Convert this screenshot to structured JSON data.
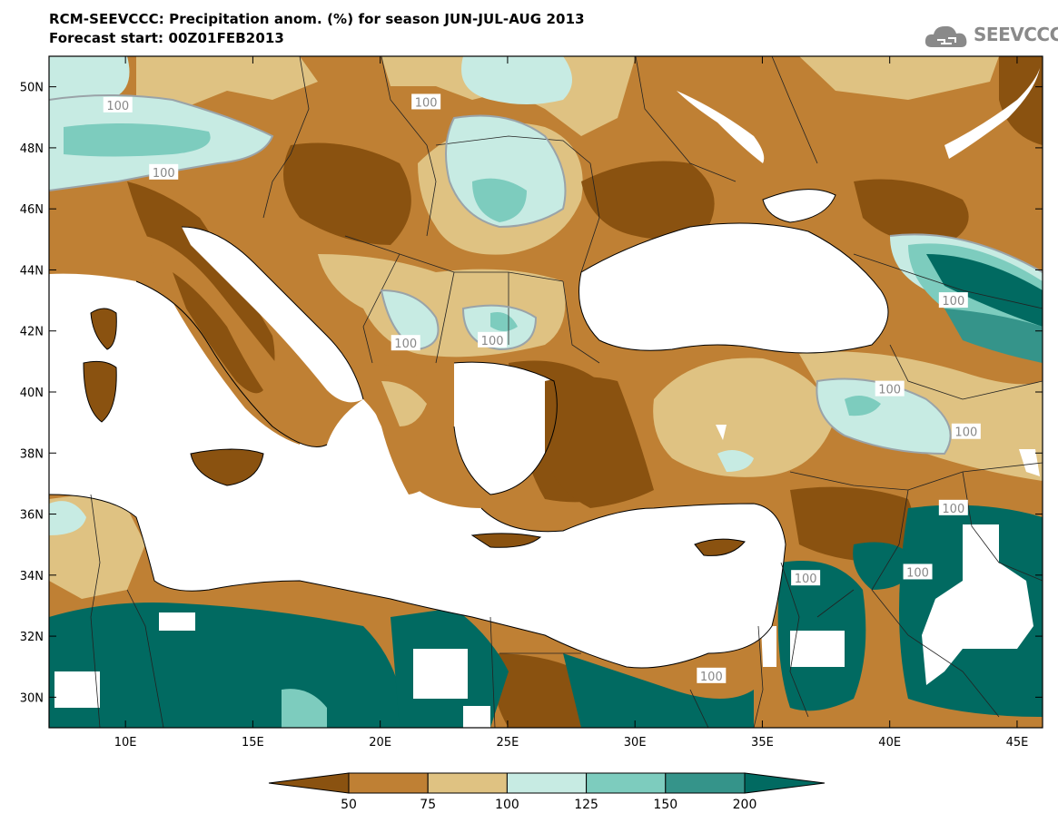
{
  "header": {
    "title_line1": "RCM-SEEVCCC: Precipitation anom. (%) for season JUN-JUL-AUG 2013",
    "title_line2": "Forecast start: 00Z01FEB2013",
    "logo_text": "SEEVCCC"
  },
  "map": {
    "lon_range": [
      7,
      46
    ],
    "lat_range": [
      29,
      51
    ],
    "lon_ticks": [
      {
        "value": 10,
        "label": "10E"
      },
      {
        "value": 15,
        "label": "15E"
      },
      {
        "value": 20,
        "label": "20E"
      },
      {
        "value": 25,
        "label": "25E"
      },
      {
        "value": 30,
        "label": "30E"
      },
      {
        "value": 35,
        "label": "35E"
      },
      {
        "value": 40,
        "label": "40E"
      },
      {
        "value": 45,
        "label": "45E"
      }
    ],
    "lat_ticks": [
      {
        "value": 50,
        "label": "50N"
      },
      {
        "value": 48,
        "label": "48N"
      },
      {
        "value": 46,
        "label": "46N"
      },
      {
        "value": 44,
        "label": "44N"
      },
      {
        "value": 42,
        "label": "42N"
      },
      {
        "value": 40,
        "label": "40N"
      },
      {
        "value": 38,
        "label": "38N"
      },
      {
        "value": 36,
        "label": "36N"
      },
      {
        "value": 34,
        "label": "34N"
      },
      {
        "value": 32,
        "label": "32N"
      },
      {
        "value": 30,
        "label": "30N"
      }
    ],
    "contour_labels": [
      {
        "text": "100",
        "lon": 9.7,
        "lat": 49.4
      },
      {
        "text": "100",
        "lon": 21.8,
        "lat": 49.5
      },
      {
        "text": "100",
        "lon": 11.5,
        "lat": 47.2
      },
      {
        "text": "100",
        "lon": 21.0,
        "lat": 41.6
      },
      {
        "text": "100",
        "lon": 24.4,
        "lat": 41.7
      },
      {
        "text": "100",
        "lon": 42.5,
        "lat": 43.0
      },
      {
        "text": "100",
        "lon": 40.0,
        "lat": 40.1
      },
      {
        "text": "100",
        "lon": 43.0,
        "lat": 38.7
      },
      {
        "text": "100",
        "lon": 42.5,
        "lat": 36.2
      },
      {
        "text": "100",
        "lon": 36.7,
        "lat": 33.9
      },
      {
        "text": "100",
        "lon": 41.1,
        "lat": 34.1
      },
      {
        "text": "100",
        "lon": 33.0,
        "lat": 30.7
      }
    ]
  },
  "colorbar": {
    "colors": [
      "#8a5210",
      "#bf8034",
      "#dfc282",
      "#c7ebe3",
      "#7dccbe",
      "#35948a",
      "#016a61"
    ],
    "labels": [
      "50",
      "75",
      "100",
      "125",
      "150",
      "200"
    ]
  },
  "colors": {
    "sea": "#ffffff",
    "very_dry": "#8a5210",
    "dry": "#bf8034",
    "slightly_dry": "#dfc282",
    "slightly_wet": "#c7ebe3",
    "wet": "#7dccbe",
    "very_wet": "#35948a",
    "extreme_wet": "#016a61"
  }
}
